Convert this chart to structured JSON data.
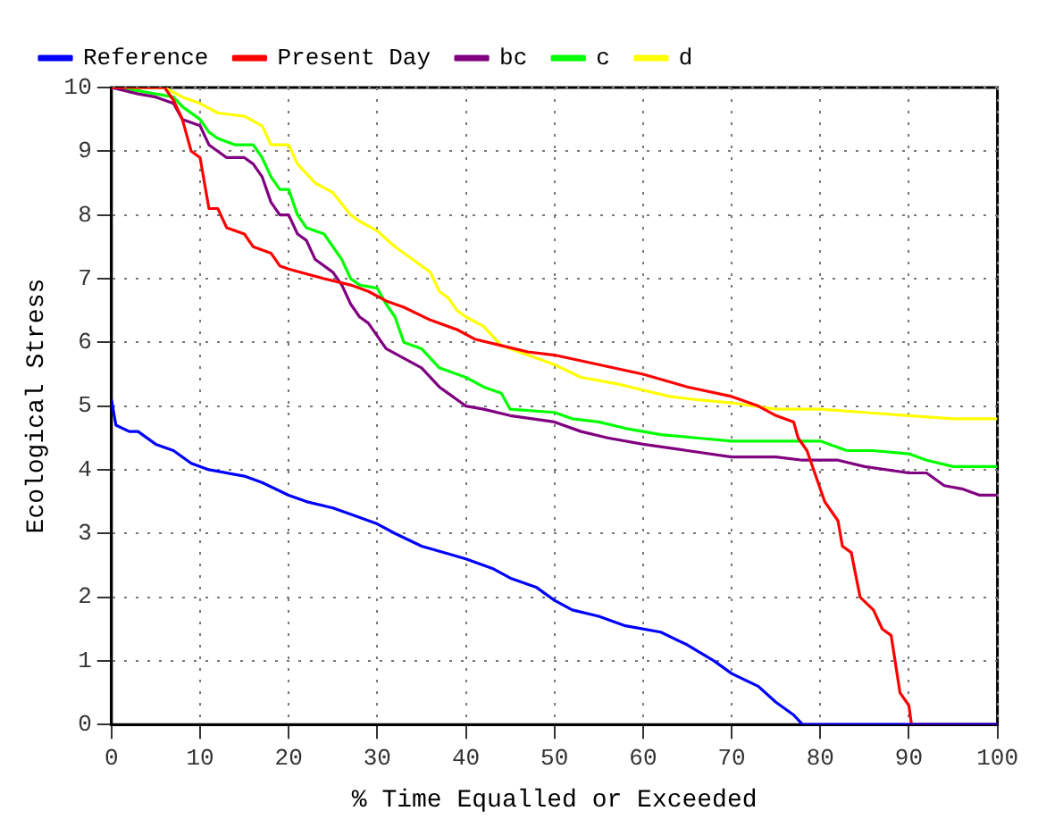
{
  "chart_data": {
    "type": "line",
    "xlabel": "% Time Equalled or Exceeded",
    "ylabel": "Ecological Stress",
    "xlim": [
      0,
      100
    ],
    "xticks": [
      0,
      10,
      20,
      30,
      40,
      50,
      60,
      70,
      80,
      90,
      100
    ],
    "ylim": [
      0,
      10
    ],
    "yticks": [
      0,
      1,
      2,
      3,
      4,
      5,
      6,
      7,
      8,
      9,
      10
    ],
    "grid": true,
    "legend": "top",
    "marker": "none",
    "line_style": "solid",
    "series": [
      {
        "name": "Reference",
        "color": "#0000ff",
        "x": [
          0,
          0.5,
          2,
          3,
          5,
          7,
          9,
          11,
          15,
          17,
          20,
          22,
          25,
          27,
          30,
          32,
          35,
          40,
          43,
          45,
          48,
          50,
          52,
          55,
          58,
          62,
          65,
          68,
          70,
          73,
          75,
          77,
          78,
          100
        ],
        "values": [
          5.1,
          4.7,
          4.6,
          4.6,
          4.4,
          4.3,
          4.1,
          4.0,
          3.9,
          3.8,
          3.6,
          3.5,
          3.4,
          3.3,
          3.15,
          3.0,
          2.8,
          2.6,
          2.45,
          2.3,
          2.15,
          1.95,
          1.8,
          1.7,
          1.55,
          1.45,
          1.25,
          1.0,
          0.8,
          0.6,
          0.35,
          0.15,
          0,
          0
        ]
      },
      {
        "name": "Present Day",
        "color": "#ff0000",
        "x": [
          0,
          6,
          7,
          8,
          9,
          10,
          11,
          12,
          13,
          15,
          16,
          18,
          19,
          20,
          24,
          27,
          29,
          31,
          33,
          36,
          39,
          41,
          44,
          47,
          50,
          55,
          60,
          65,
          70,
          73,
          75,
          77,
          77.5,
          78.5,
          79.5,
          80.5,
          82,
          82.5,
          83.5,
          84.5,
          86,
          87,
          88,
          89,
          90,
          90.3,
          100
        ],
        "values": [
          10,
          10,
          9.8,
          9.5,
          9.0,
          8.9,
          8.1,
          8.1,
          7.8,
          7.7,
          7.5,
          7.4,
          7.2,
          7.15,
          7.0,
          6.9,
          6.8,
          6.65,
          6.55,
          6.35,
          6.2,
          6.05,
          5.95,
          5.85,
          5.8,
          5.65,
          5.5,
          5.3,
          5.15,
          5.0,
          4.85,
          4.75,
          4.5,
          4.3,
          3.9,
          3.5,
          3.2,
          2.8,
          2.7,
          2.0,
          1.8,
          1.5,
          1.4,
          0.5,
          0.3,
          0,
          0
        ]
      },
      {
        "name": "bc",
        "color": "#800080",
        "x": [
          0,
          3,
          5,
          6,
          7,
          8,
          10,
          11,
          13,
          15,
          16,
          17,
          18,
          19,
          20,
          21,
          22,
          23,
          25,
          26,
          27,
          28,
          29,
          30,
          31,
          33,
          35,
          37,
          38,
          40,
          42,
          45,
          50,
          53,
          56,
          60,
          65,
          70,
          75,
          78,
          82,
          85,
          90,
          92,
          94,
          96,
          98,
          100
        ],
        "values": [
          10,
          9.9,
          9.85,
          9.8,
          9.75,
          9.5,
          9.4,
          9.1,
          8.9,
          8.9,
          8.8,
          8.6,
          8.2,
          8.0,
          8.0,
          7.7,
          7.6,
          7.3,
          7.1,
          6.9,
          6.6,
          6.4,
          6.3,
          6.1,
          5.9,
          5.75,
          5.6,
          5.3,
          5.2,
          5.0,
          4.95,
          4.85,
          4.75,
          4.6,
          4.5,
          4.4,
          4.3,
          4.2,
          4.2,
          4.15,
          4.15,
          4.05,
          3.95,
          3.95,
          3.75,
          3.7,
          3.6,
          3.6
        ]
      },
      {
        "name": "c",
        "color": "#00ff00",
        "x": [
          0,
          3,
          5,
          7,
          8,
          10,
          11,
          12,
          14,
          16,
          17,
          18,
          19,
          20,
          21,
          22,
          24,
          26,
          27,
          28,
          30,
          31,
          32,
          33,
          35,
          37,
          40,
          42,
          44,
          45,
          50,
          52,
          55,
          58,
          62,
          66,
          70,
          75,
          80,
          83,
          86,
          90,
          92,
          95,
          100
        ],
        "values": [
          10,
          9.95,
          9.9,
          9.85,
          9.7,
          9.5,
          9.3,
          9.2,
          9.1,
          9.1,
          8.9,
          8.6,
          8.4,
          8.4,
          8.0,
          7.8,
          7.7,
          7.3,
          7.0,
          6.9,
          6.85,
          6.6,
          6.4,
          6.0,
          5.9,
          5.6,
          5.45,
          5.3,
          5.2,
          4.95,
          4.9,
          4.8,
          4.75,
          4.65,
          4.55,
          4.5,
          4.45,
          4.45,
          4.45,
          4.3,
          4.3,
          4.25,
          4.15,
          4.05,
          4.05
        ]
      },
      {
        "name": "d",
        "color": "#ffff00",
        "x": [
          0,
          6,
          8,
          10,
          12,
          15,
          17,
          18,
          20,
          21,
          23,
          25,
          27,
          28,
          30,
          32,
          34,
          36,
          37,
          38,
          39,
          40,
          42,
          44,
          46,
          48,
          50,
          53,
          57,
          60,
          63,
          66,
          70,
          75,
          80,
          85,
          90,
          95,
          100
        ],
        "values": [
          10,
          10,
          9.85,
          9.75,
          9.6,
          9.55,
          9.4,
          9.1,
          9.1,
          8.8,
          8.5,
          8.35,
          8.0,
          7.9,
          7.75,
          7.5,
          7.3,
          7.1,
          6.8,
          6.7,
          6.5,
          6.4,
          6.25,
          5.95,
          5.85,
          5.75,
          5.65,
          5.45,
          5.35,
          5.25,
          5.15,
          5.1,
          5.05,
          4.95,
          4.95,
          4.9,
          4.85,
          4.8,
          4.8
        ]
      }
    ]
  }
}
